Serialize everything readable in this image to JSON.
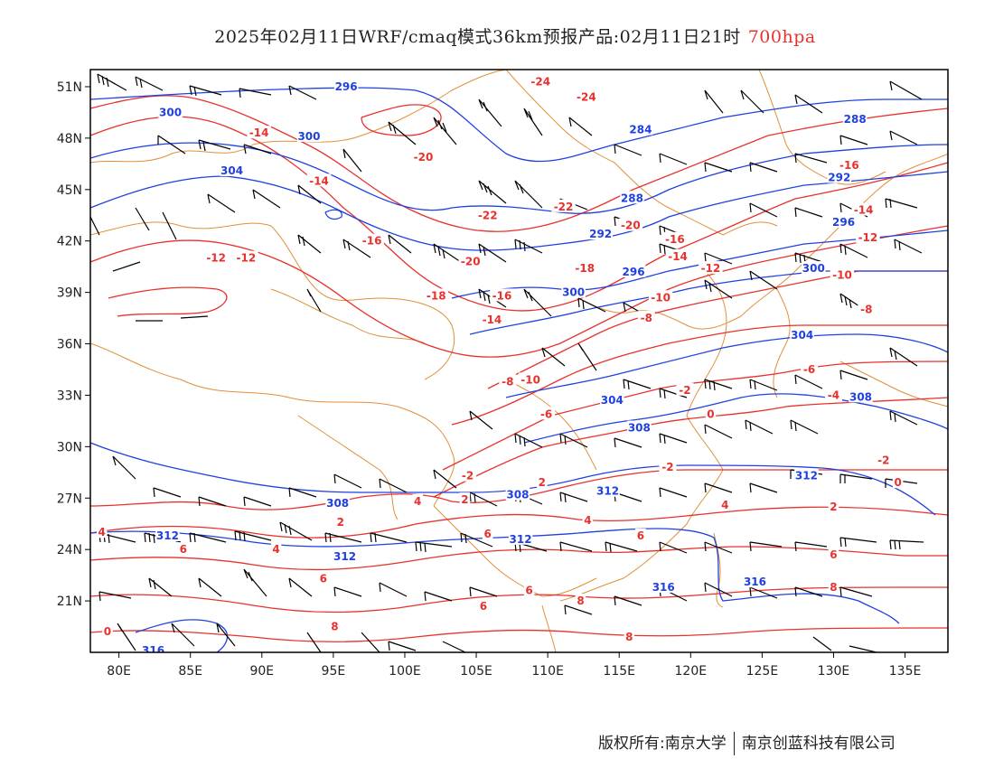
{
  "title": {
    "main": "2025年02月11日WRF/cmaq模式36km预报产品:02月11日21时",
    "level": "700hpa"
  },
  "footer": {
    "copyright": "版权所有:南京大学",
    "company": "南京创蓝科技有限公司"
  },
  "map": {
    "lon_range": [
      78,
      138
    ],
    "lat_range": [
      18,
      52
    ],
    "lon_ticks": [
      "80E",
      "85E",
      "90E",
      "95E",
      "100E",
      "105E",
      "110E",
      "115E",
      "120E",
      "125E",
      "130E",
      "135E"
    ],
    "lat_ticks": [
      "51N",
      "48N",
      "45N",
      "42N",
      "39N",
      "36N",
      "33N",
      "30N",
      "27N",
      "24N",
      "21N"
    ],
    "colors": {
      "frame": "#000000",
      "border": "#e0903a",
      "temperature": "#e8312d",
      "height": "#2040e0",
      "wind": "#000000"
    }
  },
  "contours": {
    "height_labels": [
      {
        "text": "296",
        "lon": 95.9,
        "lat": 51.0
      },
      {
        "text": "300",
        "lon": 83.6,
        "lat": 49.5
      },
      {
        "text": "300",
        "lon": 93.3,
        "lat": 48.1
      },
      {
        "text": "304",
        "lon": 87.9,
        "lat": 46.1
      },
      {
        "text": "284",
        "lon": 116.5,
        "lat": 48.5
      },
      {
        "text": "288",
        "lon": 131.5,
        "lat": 49.1
      },
      {
        "text": "288",
        "lon": 115.9,
        "lat": 44.5
      },
      {
        "text": "292",
        "lon": 113.7,
        "lat": 42.4
      },
      {
        "text": "292",
        "lon": 130.4,
        "lat": 45.7
      },
      {
        "text": "296",
        "lon": 130.7,
        "lat": 43.1
      },
      {
        "text": "296",
        "lon": 116.0,
        "lat": 40.2
      },
      {
        "text": "300",
        "lon": 128.6,
        "lat": 40.4
      },
      {
        "text": "300",
        "lon": 111.8,
        "lat": 39.0
      },
      {
        "text": "304",
        "lon": 127.8,
        "lat": 36.5
      },
      {
        "text": "304",
        "lon": 114.5,
        "lat": 32.7
      },
      {
        "text": "308",
        "lon": 131.9,
        "lat": 32.9
      },
      {
        "text": "308",
        "lon": 116.4,
        "lat": 31.1
      },
      {
        "text": "312",
        "lon": 128.1,
        "lat": 28.3
      },
      {
        "text": "312",
        "lon": 114.2,
        "lat": 27.4
      },
      {
        "text": "308",
        "lon": 107.9,
        "lat": 27.2
      },
      {
        "text": "308",
        "lon": 95.3,
        "lat": 26.7
      },
      {
        "text": "312",
        "lon": 83.4,
        "lat": 24.8
      },
      {
        "text": "312",
        "lon": 108.1,
        "lat": 24.6
      },
      {
        "text": "312",
        "lon": 95.8,
        "lat": 23.6
      },
      {
        "text": "316",
        "lon": 118.1,
        "lat": 21.8
      },
      {
        "text": "316",
        "lon": 124.5,
        "lat": 22.1
      },
      {
        "text": "316",
        "lon": 82.4,
        "lat": 18.1
      }
    ],
    "temp_labels": [
      {
        "text": "-24",
        "lon": 109.5,
        "lat": 51.3
      },
      {
        "text": "-24",
        "lon": 112.7,
        "lat": 50.4
      },
      {
        "text": "-14",
        "lon": 89.8,
        "lat": 48.3
      },
      {
        "text": "-20",
        "lon": 101.3,
        "lat": 46.9
      },
      {
        "text": "-14",
        "lon": 94.0,
        "lat": 45.5
      },
      {
        "text": "-16",
        "lon": 131.1,
        "lat": 46.4
      },
      {
        "text": "-22",
        "lon": 111.1,
        "lat": 44.0
      },
      {
        "text": "-22",
        "lon": 105.8,
        "lat": 43.5
      },
      {
        "text": "-20",
        "lon": 115.8,
        "lat": 42.9
      },
      {
        "text": "-16",
        "lon": 118.9,
        "lat": 42.1
      },
      {
        "text": "-14",
        "lon": 132.1,
        "lat": 43.8
      },
      {
        "text": "-12",
        "lon": 132.4,
        "lat": 42.2
      },
      {
        "text": "-16",
        "lon": 97.7,
        "lat": 42.0
      },
      {
        "text": "-14",
        "lon": 119.1,
        "lat": 41.1
      },
      {
        "text": "-20",
        "lon": 104.6,
        "lat": 40.8
      },
      {
        "text": "-18",
        "lon": 112.6,
        "lat": 40.4
      },
      {
        "text": "-12",
        "lon": 121.4,
        "lat": 40.4
      },
      {
        "text": "-12",
        "lon": 86.8,
        "lat": 41.0
      },
      {
        "text": "-12",
        "lon": 88.9,
        "lat": 41.0
      },
      {
        "text": "-10",
        "lon": 130.6,
        "lat": 40.0
      },
      {
        "text": "-18",
        "lon": 102.2,
        "lat": 38.8
      },
      {
        "text": "-16",
        "lon": 106.8,
        "lat": 38.8
      },
      {
        "text": "-10",
        "lon": 117.9,
        "lat": 38.7
      },
      {
        "text": "-8",
        "lon": 132.3,
        "lat": 38.0
      },
      {
        "text": "-14",
        "lon": 106.1,
        "lat": 37.4
      },
      {
        "text": "-8",
        "lon": 116.9,
        "lat": 37.5
      },
      {
        "text": "-6",
        "lon": 128.3,
        "lat": 34.5
      },
      {
        "text": "-8",
        "lon": 107.2,
        "lat": 33.8
      },
      {
        "text": "-10",
        "lon": 108.8,
        "lat": 33.9
      },
      {
        "text": "-4",
        "lon": 130.0,
        "lat": 33.0
      },
      {
        "text": "-2",
        "lon": 119.6,
        "lat": 33.3
      },
      {
        "text": "-6",
        "lon": 109.9,
        "lat": 31.9
      },
      {
        "text": "0",
        "lon": 121.4,
        "lat": 31.9
      },
      {
        "text": "-2",
        "lon": 133.5,
        "lat": 29.2
      },
      {
        "text": "-2",
        "lon": 118.4,
        "lat": 28.8
      },
      {
        "text": "2",
        "lon": 109.6,
        "lat": 27.9
      },
      {
        "text": "0",
        "lon": 134.5,
        "lat": 27.9
      },
      {
        "text": "-2",
        "lon": 104.4,
        "lat": 28.3
      },
      {
        "text": "2",
        "lon": 104.2,
        "lat": 26.9
      },
      {
        "text": "4",
        "lon": 122.4,
        "lat": 26.6
      },
      {
        "text": "2",
        "lon": 130.0,
        "lat": 26.5
      },
      {
        "text": "4",
        "lon": 100.9,
        "lat": 26.8
      },
      {
        "text": "2",
        "lon": 95.5,
        "lat": 25.6
      },
      {
        "text": "4",
        "lon": 112.8,
        "lat": 25.7
      },
      {
        "text": "4",
        "lon": 78.8,
        "lat": 25.0
      },
      {
        "text": "6",
        "lon": 84.5,
        "lat": 24.0
      },
      {
        "text": "4",
        "lon": 91.0,
        "lat": 24.0
      },
      {
        "text": "6",
        "lon": 105.8,
        "lat": 24.9
      },
      {
        "text": "6",
        "lon": 116.5,
        "lat": 24.8
      },
      {
        "text": "6",
        "lon": 108.7,
        "lat": 21.6
      },
      {
        "text": "6",
        "lon": 130.0,
        "lat": 23.7
      },
      {
        "text": "6",
        "lon": 94.3,
        "lat": 22.3
      },
      {
        "text": "6",
        "lon": 105.5,
        "lat": 20.7
      },
      {
        "text": "8",
        "lon": 112.3,
        "lat": 21.0
      },
      {
        "text": "8",
        "lon": 130.0,
        "lat": 21.8
      },
      {
        "text": "8",
        "lon": 95.1,
        "lat": 19.5
      },
      {
        "text": "8",
        "lon": 115.7,
        "lat": 18.9
      },
      {
        "text": "0",
        "lon": 79.2,
        "lat": 19.2
      }
    ]
  }
}
